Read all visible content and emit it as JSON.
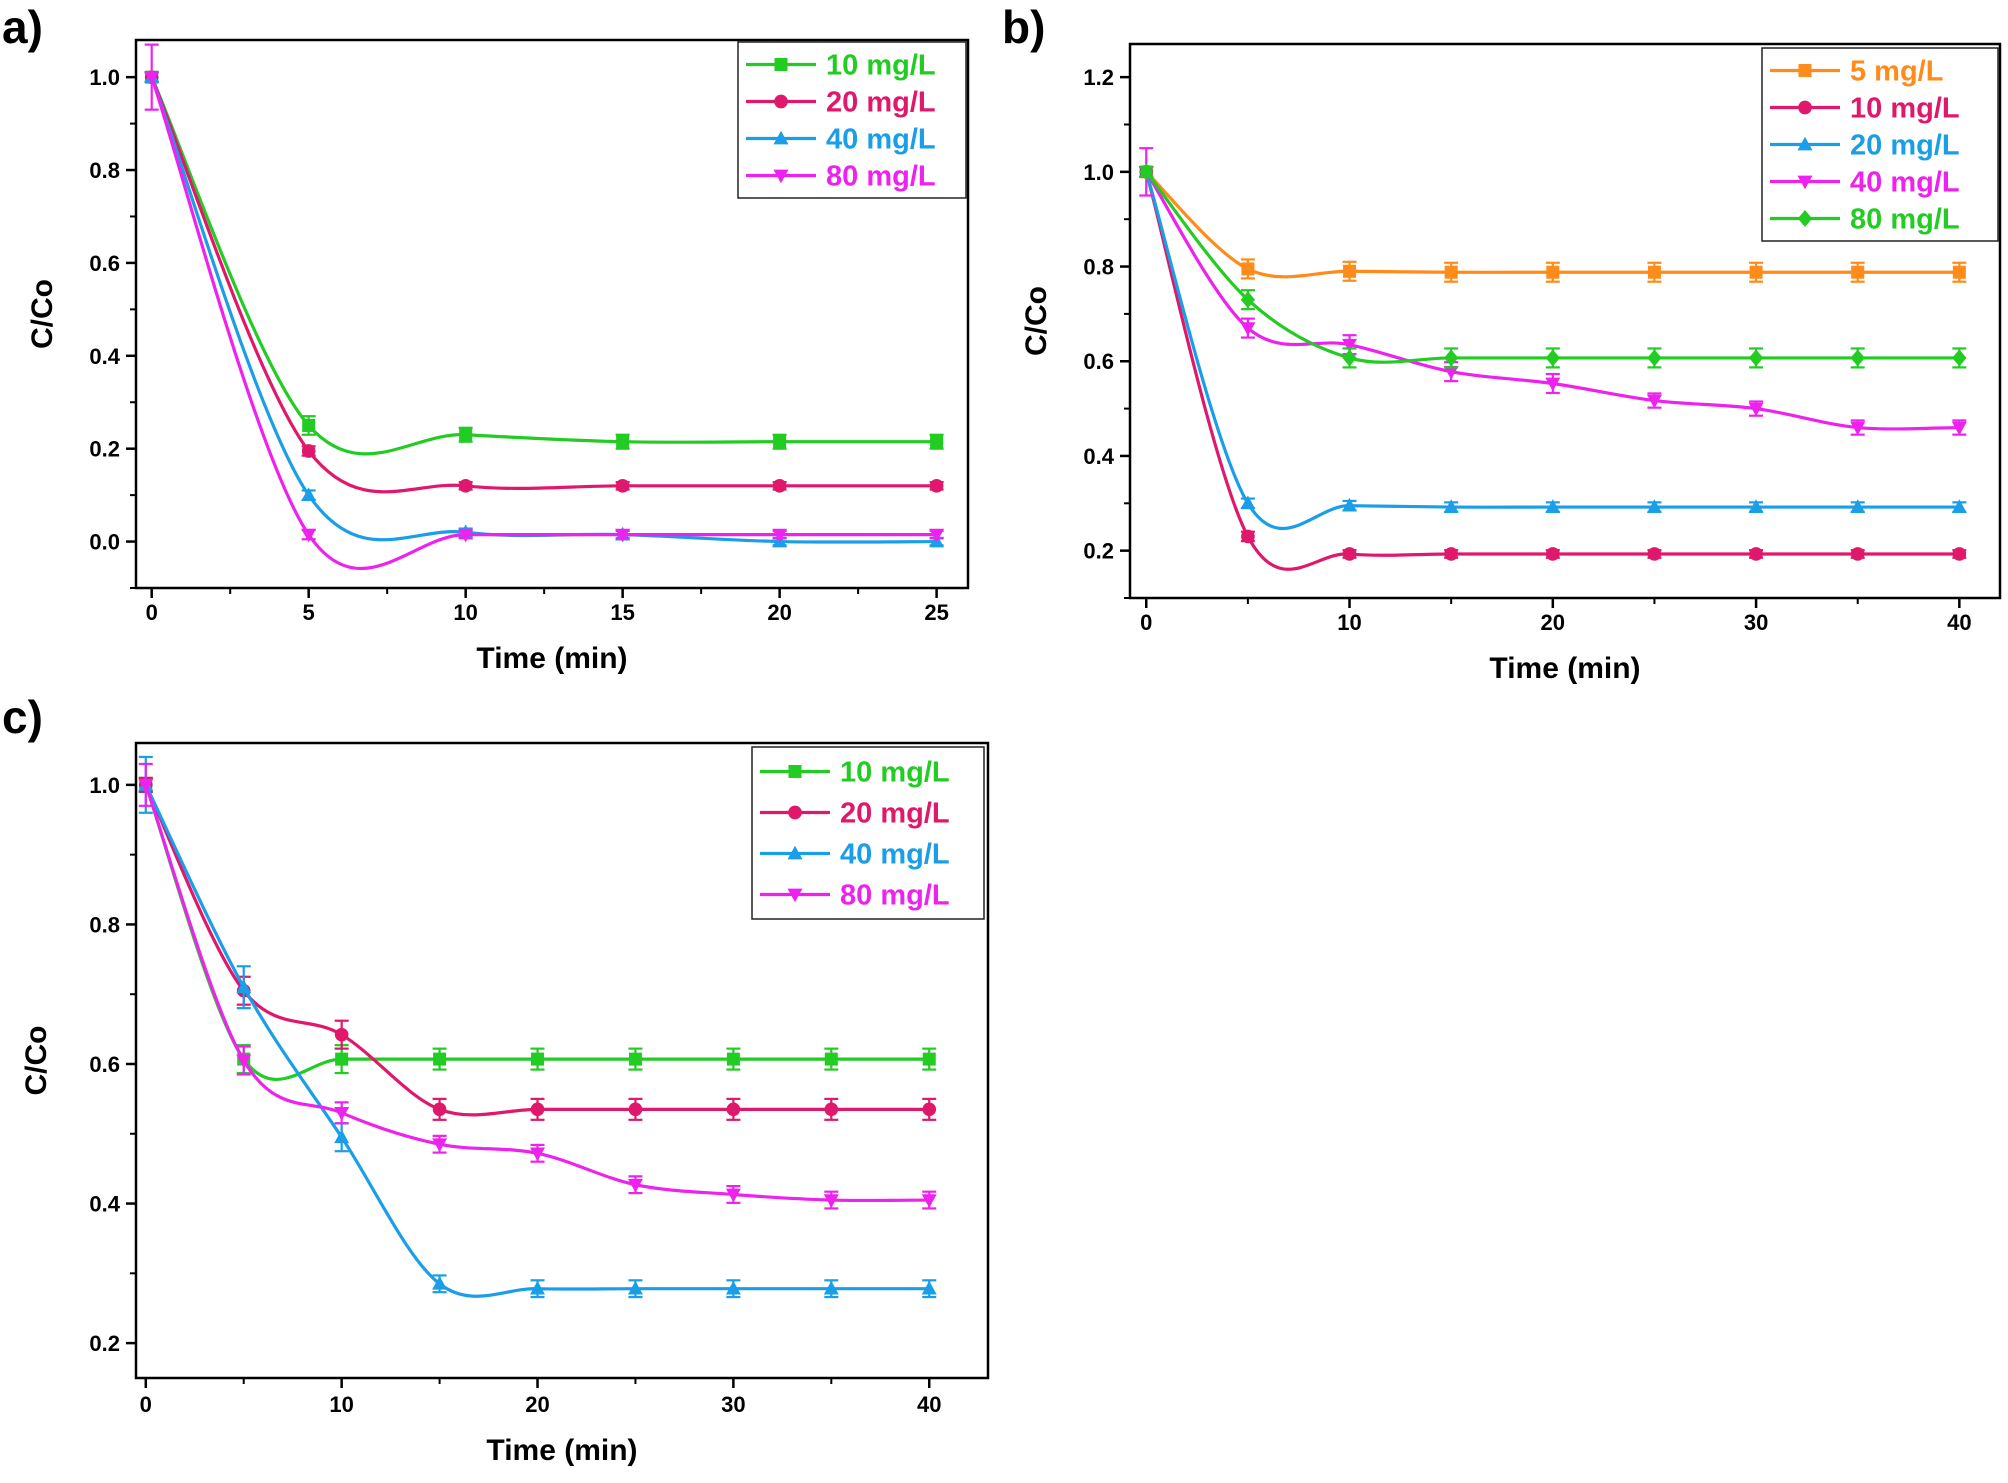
{
  "chart_data": [
    {
      "panel_label": "a)",
      "type": "line",
      "xlabel": "Time (min)",
      "ylabel": "C/Co",
      "xlim": [
        -0.5,
        26
      ],
      "ylim": [
        -0.1,
        1.08
      ],
      "xticks": [
        "0",
        "5",
        "10",
        "15",
        "20",
        "25"
      ],
      "xtick_values": [
        0,
        5,
        10,
        15,
        20,
        25
      ],
      "yticks": [
        "0.0",
        "0.2",
        "0.4",
        "0.6",
        "0.8",
        "1.0"
      ],
      "ytick_values": [
        0.0,
        0.2,
        0.4,
        0.6,
        0.8,
        1.0
      ],
      "legend_position": "top-right",
      "x": [
        0,
        5,
        10,
        15,
        20,
        25
      ],
      "series": [
        {
          "name": "10 mg/L",
          "color": "#22cc22",
          "marker": "square",
          "values": [
            1.0,
            0.25,
            0.23,
            0.215,
            0.215,
            0.215
          ],
          "error": [
            0.01,
            0.02,
            0.015,
            0.015,
            0.015,
            0.015
          ]
        },
        {
          "name": "20 mg/L",
          "color": "#e0186c",
          "marker": "circle",
          "values": [
            1.0,
            0.195,
            0.12,
            0.12,
            0.12,
            0.12
          ],
          "error": [
            0.01,
            0.01,
            0.008,
            0.008,
            0.008,
            0.008
          ]
        },
        {
          "name": "40 mg/L",
          "color": "#1a9ee8",
          "marker": "triangle-up",
          "values": [
            1.0,
            0.1,
            0.02,
            0.015,
            0.0,
            0.0
          ],
          "error": [
            0.01,
            0.01,
            0.008,
            0.008,
            0.008,
            0.008
          ]
        },
        {
          "name": "80 mg/L",
          "color": "#ee22ee",
          "marker": "triangle-down",
          "values": [
            1.0,
            0.015,
            0.015,
            0.015,
            0.015,
            0.015
          ],
          "error": [
            0.07,
            0.01,
            0.008,
            0.008,
            0.008,
            0.008
          ]
        }
      ]
    },
    {
      "panel_label": "b)",
      "type": "line",
      "xlabel": "Time (min)",
      "ylabel": "C/Co",
      "xlim": [
        -0.8,
        42
      ],
      "ylim": [
        0.1,
        1.27
      ],
      "xticks": [
        "0",
        "10",
        "20",
        "30",
        "40"
      ],
      "xtick_values": [
        0,
        10,
        20,
        30,
        40
      ],
      "yticks": [
        "0.2",
        "0.4",
        "0.6",
        "0.8",
        "1.0",
        "1.2"
      ],
      "ytick_values": [
        0.2,
        0.4,
        0.6,
        0.8,
        1.0,
        1.2
      ],
      "legend_position": "top-right",
      "x": [
        0,
        5,
        10,
        15,
        20,
        25,
        30,
        35,
        40
      ],
      "series": [
        {
          "name": "5 mg/L",
          "color": "#ff8c1a",
          "marker": "square",
          "values": [
            1.0,
            0.795,
            0.79,
            0.788,
            0.788,
            0.788,
            0.788,
            0.788,
            0.788
          ],
          "error": [
            0.01,
            0.02,
            0.02,
            0.02,
            0.02,
            0.02,
            0.02,
            0.02,
            0.02
          ]
        },
        {
          "name": "10 mg/L",
          "color": "#e0186c",
          "marker": "circle",
          "values": [
            1.0,
            0.23,
            0.193,
            0.193,
            0.193,
            0.193,
            0.193,
            0.193,
            0.193
          ],
          "error": [
            0.01,
            0.01,
            0.008,
            0.008,
            0.008,
            0.008,
            0.008,
            0.008,
            0.008
          ]
        },
        {
          "name": "20 mg/L",
          "color": "#1a9ee8",
          "marker": "triangle-up",
          "values": [
            1.0,
            0.3,
            0.295,
            0.292,
            0.292,
            0.292,
            0.292,
            0.292,
            0.292
          ],
          "error": [
            0.01,
            0.01,
            0.01,
            0.01,
            0.01,
            0.01,
            0.01,
            0.01,
            0.01
          ]
        },
        {
          "name": "40 mg/L",
          "color": "#ee22ee",
          "marker": "triangle-down",
          "values": [
            1.0,
            0.67,
            0.635,
            0.578,
            0.553,
            0.517,
            0.5,
            0.46,
            0.46
          ],
          "error": [
            0.05,
            0.02,
            0.02,
            0.02,
            0.02,
            0.015,
            0.015,
            0.015,
            0.015
          ]
        },
        {
          "name": "80 mg/L",
          "color": "#22cc22",
          "marker": "diamond",
          "values": [
            1.0,
            0.73,
            0.607,
            0.607,
            0.607,
            0.607,
            0.607,
            0.607,
            0.607
          ],
          "error": [
            0.01,
            0.02,
            0.02,
            0.02,
            0.02,
            0.02,
            0.02,
            0.02,
            0.02
          ]
        }
      ]
    },
    {
      "panel_label": "c)",
      "type": "line",
      "xlabel": "Time (min)",
      "ylabel": "C/Co",
      "xlim": [
        -0.5,
        43
      ],
      "ylim": [
        0.15,
        1.06
      ],
      "xticks": [
        "0",
        "10",
        "20",
        "30",
        "40"
      ],
      "xtick_values": [
        0,
        10,
        20,
        30,
        40
      ],
      "yticks": [
        "0.2",
        "0.4",
        "0.6",
        "0.8",
        "1.0"
      ],
      "ytick_values": [
        0.2,
        0.4,
        0.6,
        0.8,
        1.0
      ],
      "legend_position": "top-right",
      "x": [
        0,
        5,
        10,
        15,
        20,
        25,
        30,
        35,
        40
      ],
      "series": [
        {
          "name": "10 mg/L",
          "color": "#22cc22",
          "marker": "square",
          "values": [
            1.0,
            0.607,
            0.607,
            0.607,
            0.607,
            0.607,
            0.607,
            0.607,
            0.607
          ],
          "error": [
            0.01,
            0.02,
            0.02,
            0.015,
            0.015,
            0.015,
            0.015,
            0.015,
            0.015
          ]
        },
        {
          "name": "20 mg/L",
          "color": "#e0186c",
          "marker": "circle",
          "values": [
            1.0,
            0.705,
            0.642,
            0.535,
            0.535,
            0.535,
            0.535,
            0.535,
            0.535
          ],
          "error": [
            0.01,
            0.02,
            0.02,
            0.015,
            0.015,
            0.015,
            0.015,
            0.015,
            0.015
          ]
        },
        {
          "name": "40 mg/L",
          "color": "#1a9ee8",
          "marker": "triangle-up",
          "values": [
            1.0,
            0.71,
            0.495,
            0.285,
            0.278,
            0.278,
            0.278,
            0.278,
            0.278
          ],
          "error": [
            0.04,
            0.03,
            0.02,
            0.012,
            0.012,
            0.012,
            0.012,
            0.012,
            0.012
          ]
        },
        {
          "name": "80 mg/L",
          "color": "#ee22ee",
          "marker": "triangle-down",
          "values": [
            1.0,
            0.605,
            0.53,
            0.485,
            0.472,
            0.427,
            0.413,
            0.405,
            0.405
          ],
          "error": [
            0.03,
            0.02,
            0.015,
            0.012,
            0.012,
            0.012,
            0.012,
            0.012,
            0.012
          ]
        }
      ]
    }
  ]
}
